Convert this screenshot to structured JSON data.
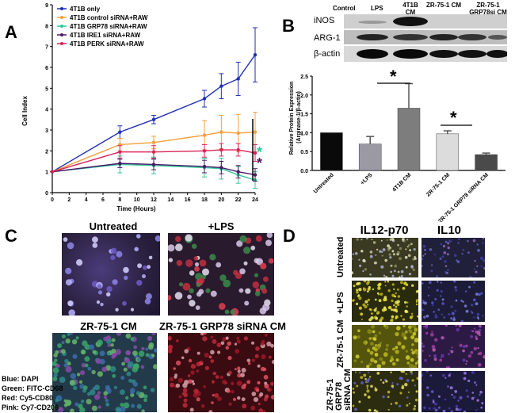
{
  "panels": {
    "a": "A",
    "b": "B",
    "c": "C",
    "d": "D"
  },
  "panel_a": {
    "legend": [
      "4T1B only",
      "4T1B control siRNA+RAW",
      "4T1B GRP78 siRNA+RAW",
      "4T1B IRE1 siRNA+RAW",
      "4T1B PERK siRNA+RAW"
    ],
    "sig_marks": [
      "*",
      "*"
    ],
    "colors": {
      "only": "#1f2fb5",
      "ctrl": "#f5a03c",
      "grp": "#2cc79a",
      "ire": "#4b1a66",
      "perk": "#d8245a"
    }
  },
  "panel_b": {
    "blot_header": [
      "Control",
      "LPS",
      "4T1B CM",
      "ZR-75-1 CM",
      "ZR-75-1 GRP78si CM"
    ],
    "blot_rows": [
      "iNOS",
      "ARG-1",
      "β-actin"
    ],
    "sig_marks": [
      "*",
      "*"
    ]
  },
  "panel_c": {
    "titles": [
      "Untreated",
      "+LPS",
      "ZR-75-1 CM",
      "ZR-75-1 GRP78 siRNA CM"
    ],
    "legend": [
      "Blue: DAPI",
      "Green: FITC-CD68",
      "Red: Cy5-CD80",
      "Pink: Cy7-CD206"
    ]
  },
  "panel_d": {
    "columns": [
      "IL12-p70",
      "IL10"
    ],
    "rows": [
      "Untreated",
      "+LPS",
      "ZR-75-1 CM",
      "ZR-75-1 GRP78 siRNA CM"
    ]
  },
  "chart_data": [
    {
      "type": "line",
      "xlabel": "Time (Hours)",
      "ylabel": "Cell Index",
      "xlim": [
        0,
        24
      ],
      "ylim": [
        0,
        9
      ],
      "xticks": [
        0,
        2,
        4,
        6,
        8,
        10,
        12,
        14,
        16,
        18,
        20,
        22,
        24
      ],
      "yticks": [
        0,
        1,
        2,
        3,
        4,
        5,
        6,
        7,
        8,
        9
      ],
      "x": [
        0,
        8,
        12,
        18,
        20,
        22,
        24
      ],
      "series": [
        {
          "name": "4T1B only",
          "color": "#1f2fb5",
          "values": [
            1,
            2.9,
            3.5,
            4.5,
            5.1,
            5.45,
            6.6
          ],
          "err": [
            0,
            0.3,
            0.2,
            0.4,
            0.6,
            0.8,
            1.3
          ]
        },
        {
          "name": "4T1B control siRNA+RAW",
          "color": "#f5a03c",
          "values": [
            1,
            2.3,
            2.4,
            2.75,
            2.9,
            2.85,
            2.9
          ],
          "err": [
            0,
            0.3,
            0.3,
            0.7,
            0.8,
            0.9,
            0.95
          ]
        },
        {
          "name": "4T1B GRP78 siRNA+RAW",
          "color": "#2cc79a",
          "values": [
            1,
            1.35,
            1.3,
            1.2,
            1.15,
            0.85,
            0.6
          ],
          "err": [
            0,
            0.4,
            0.4,
            0.45,
            0.5,
            0.4,
            0.4
          ]
        },
        {
          "name": "4T1B IRE1 siRNA+RAW",
          "color": "#4b1a66",
          "values": [
            1,
            1.4,
            1.35,
            1.25,
            1.2,
            1.0,
            0.85
          ],
          "err": [
            0,
            0.2,
            0.25,
            0.3,
            0.3,
            0.3,
            0.3
          ]
        },
        {
          "name": "4T1B PERK siRNA+RAW",
          "color": "#d8245a",
          "values": [
            1,
            1.95,
            1.95,
            2.0,
            2.05,
            2.05,
            1.9
          ],
          "err": [
            0,
            0.3,
            0.3,
            0.3,
            0.3,
            0.3,
            0.4
          ]
        }
      ]
    },
    {
      "type": "bar",
      "ylabel": "Relative Protein Expression (Arginase-1/β-actin)",
      "categories": [
        "Untreated",
        "+LPS",
        "4T1B CM",
        "ZR-75-1 CM",
        "ZR-75-1 GRP78 siRNA CM"
      ],
      "values": [
        1.0,
        0.7,
        1.65,
        0.97,
        0.42
      ],
      "errors": [
        0,
        0.2,
        0.65,
        0.08,
        0.04
      ],
      "colors": [
        "#0a0a0a",
        "#9b9aa4",
        "#7d7d7d",
        "#dcdcdc",
        "#4a4a4a"
      ],
      "ylim": [
        0,
        2.5
      ],
      "yticks": [
        "0.0",
        "0.5",
        "1.0",
        "1.5",
        "2.0",
        "2.5"
      ]
    }
  ]
}
